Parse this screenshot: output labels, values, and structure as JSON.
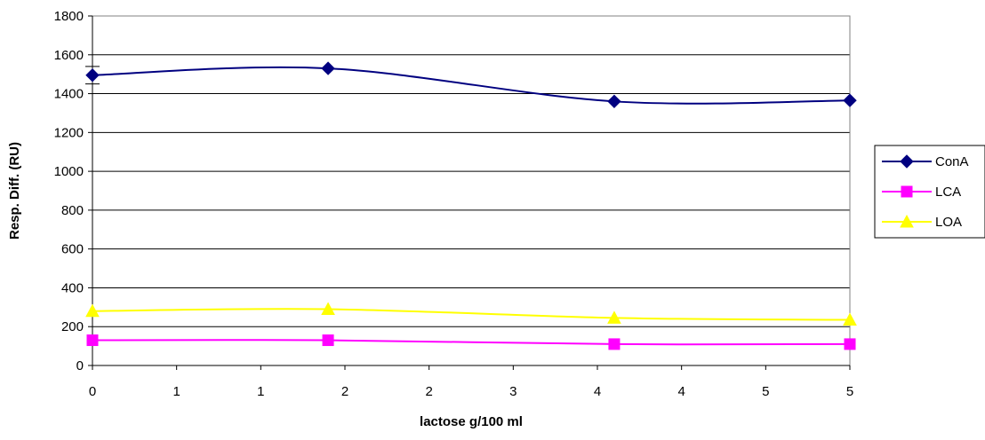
{
  "chart_data": {
    "type": "line",
    "title": "",
    "xlabel": "lactose g/100 ml",
    "ylabel": "Resp. Diff. (RU)",
    "x_tick_labels": [
      "0",
      "1",
      "1",
      "2",
      "2",
      "3",
      "4",
      "4",
      "5",
      "5"
    ],
    "y_ticks": [
      0,
      200,
      400,
      600,
      800,
      1000,
      1200,
      1400,
      1600,
      1800
    ],
    "ylim": [
      0,
      1800
    ],
    "grid": "horizontal",
    "legend_position": "right",
    "x": [
      0,
      2.8,
      6.2,
      9
    ],
    "series": [
      {
        "name": "ConA",
        "color": "#000080",
        "marker": "diamond",
        "values": [
          1495,
          1530,
          1360,
          1365
        ],
        "error": [
          45,
          0,
          0,
          0
        ]
      },
      {
        "name": "LCA",
        "color": "#FF00FF",
        "marker": "square",
        "values": [
          130,
          130,
          110,
          110
        ]
      },
      {
        "name": "LOA",
        "color": "#FFFF00",
        "marker": "triangle",
        "values": [
          280,
          290,
          245,
          235
        ]
      }
    ]
  }
}
